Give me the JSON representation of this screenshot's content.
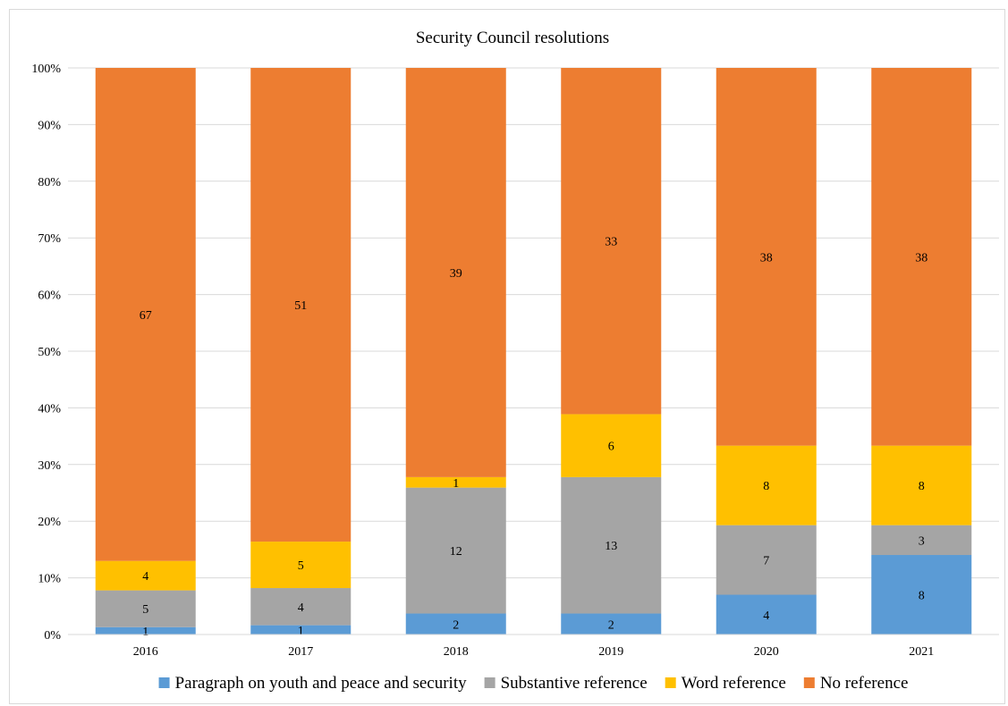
{
  "chart_data": {
    "type": "bar",
    "stacked": "percent",
    "title": "Security Council resolutions",
    "xlabel": "",
    "ylabel": "",
    "categories": [
      "2016",
      "2017",
      "2018",
      "2019",
      "2020",
      "2021"
    ],
    "y_ticks": [
      "0%",
      "10%",
      "20%",
      "30%",
      "40%",
      "50%",
      "60%",
      "70%",
      "80%",
      "90%",
      "100%"
    ],
    "ylim": [
      0,
      100
    ],
    "grid": true,
    "legend_position": "bottom",
    "series": [
      {
        "name": "Paragraph on youth and peace and security",
        "color": "#5b9bd5",
        "values": [
          1,
          1,
          2,
          2,
          4,
          8
        ]
      },
      {
        "name": "Substantive reference",
        "color": "#a5a5a5",
        "values": [
          5,
          4,
          12,
          13,
          7,
          3
        ]
      },
      {
        "name": "Word reference",
        "color": "#ffc000",
        "values": [
          4,
          5,
          1,
          6,
          8,
          8
        ]
      },
      {
        "name": "No reference",
        "color": "#ed7d31",
        "values": [
          67,
          51,
          39,
          33,
          38,
          38
        ]
      }
    ]
  }
}
